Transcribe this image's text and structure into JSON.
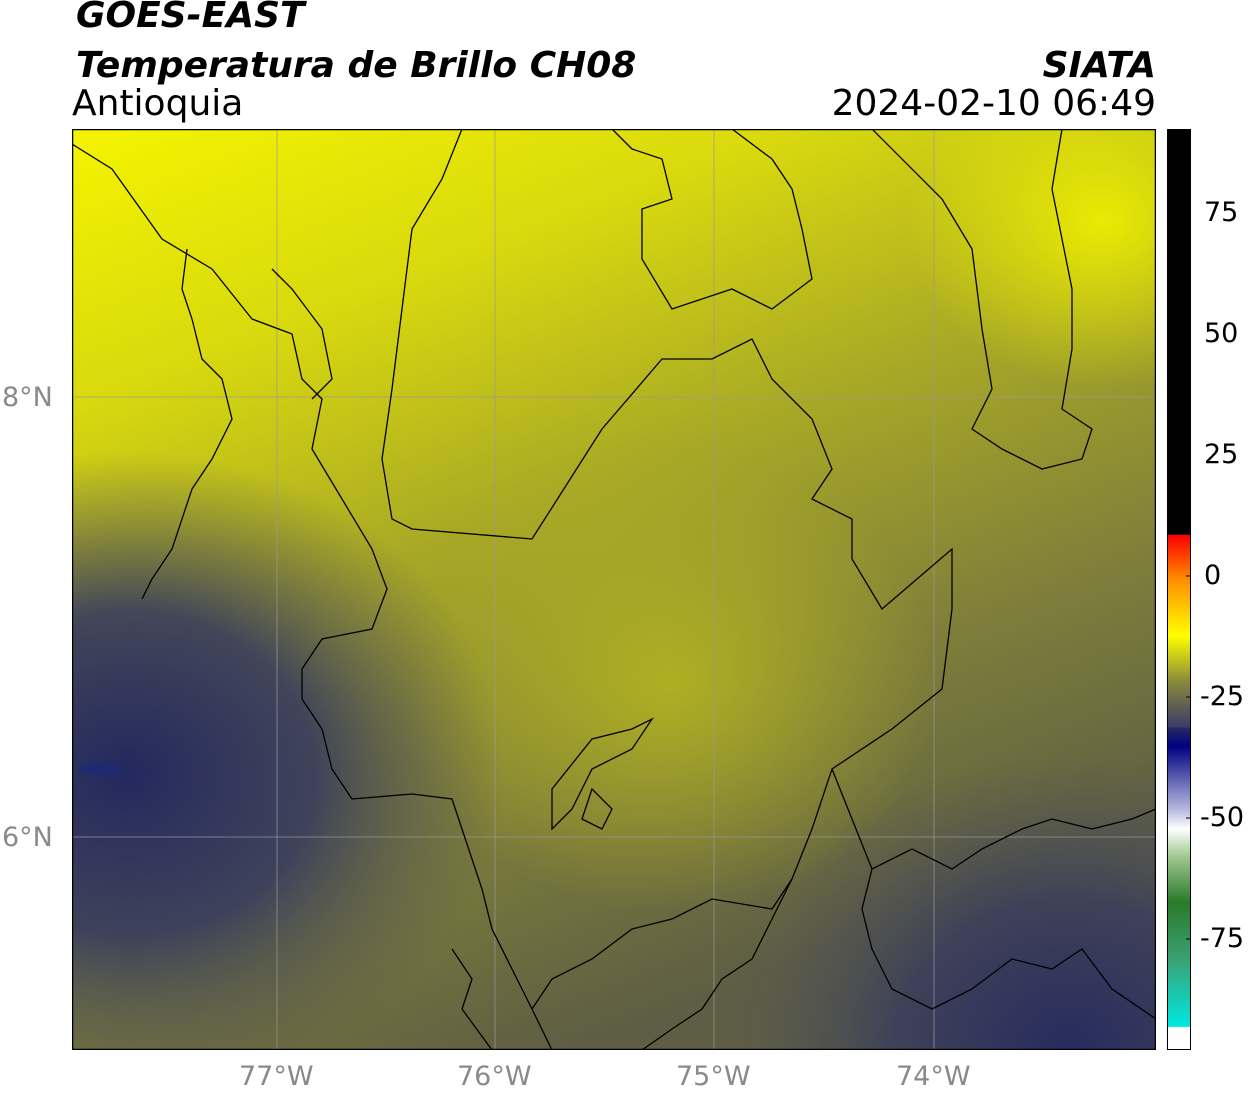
{
  "header": {
    "satellite": "GOES-EAST",
    "product": "Temperatura de Brillo CH08",
    "region": "Antioquia",
    "org": "SIATA",
    "datetime": "2024-02-10 06:49"
  },
  "axes": {
    "lon_ticks": [
      "77°W",
      "76°W",
      "75°W",
      "74°W"
    ],
    "lat_ticks": [
      "8°N",
      "6°N"
    ]
  },
  "colorbar": {
    "ticks": [
      "75",
      "50",
      "25",
      "0",
      "-25",
      "-50",
      "-75"
    ]
  },
  "colors": {
    "cold_yellow": "#f2f200",
    "mid_olive": "#8f8f2a",
    "dark_navy": "#2e3560",
    "border": "#000000",
    "grid": "#999999"
  }
}
